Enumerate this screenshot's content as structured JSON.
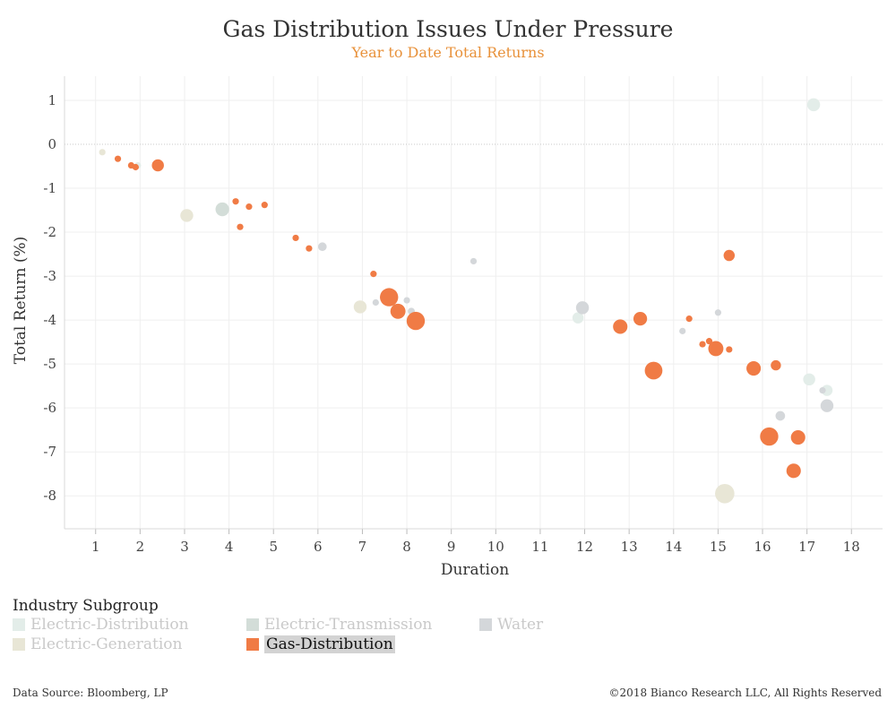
{
  "chart_data": {
    "type": "scatter",
    "title": "Gas Distribution Issues Under Pressure",
    "subtitle": "Year to Date Total Returns",
    "xlabel": "Duration",
    "ylabel": "Total Return (%)",
    "xlim": [
      0.3,
      18.7
    ],
    "ylim": [
      -8.75,
      1.55
    ],
    "x_ticks": [
      1,
      2,
      3,
      4,
      5,
      6,
      7,
      8,
      9,
      10,
      11,
      12,
      13,
      14,
      15,
      16,
      17,
      18
    ],
    "y_ticks": [
      1,
      0,
      -1,
      -2,
      -3,
      -4,
      -5,
      -6,
      -7,
      -8
    ],
    "grid": true,
    "legend_title": "Industry Subgroup",
    "legend_placement": "bottom-left",
    "highlighted_series": "Gas-Distribution",
    "series": [
      {
        "name": "Electric-Distribution",
        "color": "#e3ede9",
        "points": [
          {
            "x": 1.95,
            "y": -0.48,
            "size": 1
          },
          {
            "x": 11.85,
            "y": -3.95,
            "size": 3
          },
          {
            "x": 17.05,
            "y": -5.35,
            "size": 3.5
          },
          {
            "x": 17.45,
            "y": -5.6,
            "size": 3
          },
          {
            "x": 17.15,
            "y": 0.9,
            "size": 4
          }
        ]
      },
      {
        "name": "Electric-Transmission",
        "color": "#d3ddd8",
        "points": [
          {
            "x": 3.85,
            "y": -1.48,
            "size": 4.5
          }
        ]
      },
      {
        "name": "Water",
        "color": "#d4d7da",
        "points": [
          {
            "x": 6.1,
            "y": -2.33,
            "size": 1.8
          },
          {
            "x": 7.3,
            "y": -3.6,
            "size": 1
          },
          {
            "x": 8.0,
            "y": -3.55,
            "size": 1
          },
          {
            "x": 8.1,
            "y": -3.8,
            "size": 1.2
          },
          {
            "x": 9.5,
            "y": -2.66,
            "size": 1
          },
          {
            "x": 11.95,
            "y": -3.72,
            "size": 4
          },
          {
            "x": 14.2,
            "y": -4.25,
            "size": 1
          },
          {
            "x": 15.0,
            "y": -3.83,
            "size": 1
          },
          {
            "x": 16.4,
            "y": -6.18,
            "size": 2.2
          },
          {
            "x": 17.35,
            "y": -5.6,
            "size": 1
          },
          {
            "x": 17.45,
            "y": -5.95,
            "size": 4
          }
        ]
      },
      {
        "name": "Electric-Generation",
        "color": "#e8e6d6",
        "points": [
          {
            "x": 1.15,
            "y": -0.18,
            "size": 1
          },
          {
            "x": 3.05,
            "y": -1.62,
            "size": 4
          },
          {
            "x": 6.95,
            "y": -3.7,
            "size": 4
          },
          {
            "x": 15.15,
            "y": -7.95,
            "size": 9
          }
        ]
      },
      {
        "name": "Gas-Distribution",
        "color": "#f07b45",
        "points": [
          {
            "x": 1.5,
            "y": -0.33,
            "size": 1
          },
          {
            "x": 1.8,
            "y": -0.48,
            "size": 1
          },
          {
            "x": 1.9,
            "y": -0.52,
            "size": 1
          },
          {
            "x": 2.4,
            "y": -0.48,
            "size": 3.5
          },
          {
            "x": 4.15,
            "y": -1.3,
            "size": 1
          },
          {
            "x": 4.45,
            "y": -1.42,
            "size": 1
          },
          {
            "x": 4.8,
            "y": -1.38,
            "size": 1
          },
          {
            "x": 4.25,
            "y": -1.88,
            "size": 1
          },
          {
            "x": 5.5,
            "y": -2.13,
            "size": 1
          },
          {
            "x": 5.8,
            "y": -2.37,
            "size": 1
          },
          {
            "x": 7.25,
            "y": -2.95,
            "size": 1
          },
          {
            "x": 7.6,
            "y": -3.48,
            "size": 8
          },
          {
            "x": 7.8,
            "y": -3.8,
            "size": 5.5
          },
          {
            "x": 8.2,
            "y": -4.02,
            "size": 8
          },
          {
            "x": 12.8,
            "y": -4.15,
            "size": 5
          },
          {
            "x": 13.25,
            "y": -3.97,
            "size": 4.5
          },
          {
            "x": 13.55,
            "y": -5.15,
            "size": 7.5
          },
          {
            "x": 14.35,
            "y": -3.97,
            "size": 1
          },
          {
            "x": 14.65,
            "y": -4.55,
            "size": 1
          },
          {
            "x": 14.8,
            "y": -4.48,
            "size": 1
          },
          {
            "x": 14.95,
            "y": -4.65,
            "size": 5.5
          },
          {
            "x": 15.25,
            "y": -4.67,
            "size": 1
          },
          {
            "x": 15.25,
            "y": -2.53,
            "size": 3
          },
          {
            "x": 15.8,
            "y": -5.1,
            "size": 5
          },
          {
            "x": 16.3,
            "y": -5.03,
            "size": 2.5
          },
          {
            "x": 16.15,
            "y": -6.65,
            "size": 8
          },
          {
            "x": 16.8,
            "y": -6.67,
            "size": 5
          },
          {
            "x": 16.7,
            "y": -7.43,
            "size": 5
          }
        ]
      }
    ]
  },
  "footer": {
    "source": "Data Source: Bloomberg, LP",
    "copyright": "©2018 Bianco Research LLC, All Rights Reserved"
  }
}
